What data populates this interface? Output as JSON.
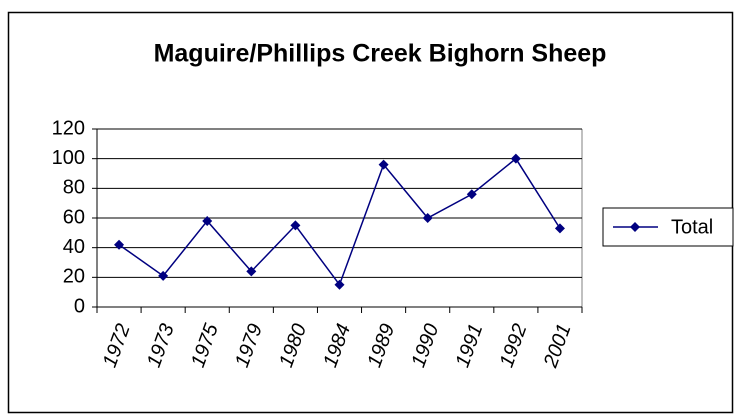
{
  "chart_data": {
    "type": "line",
    "title": "Maguire/Phillips Creek Bighorn Sheep",
    "categories": [
      "1972",
      "1973",
      "1975",
      "1979",
      "1980",
      "1984",
      "1989",
      "1990",
      "1991",
      "1992",
      "2001"
    ],
    "series": [
      {
        "name": "Total",
        "color": "#000080",
        "values": [
          42,
          21,
          58,
          24,
          55,
          15,
          96,
          60,
          76,
          100,
          53
        ]
      }
    ],
    "ylim": [
      0,
      120
    ],
    "yticks": [
      0,
      20,
      40,
      60,
      80,
      100,
      120
    ],
    "grid": true,
    "legend": "right"
  }
}
